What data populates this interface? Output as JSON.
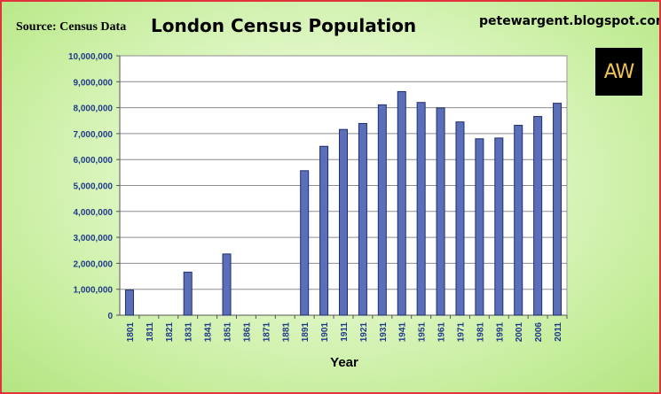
{
  "header": {
    "source": "Source: Census Data",
    "title": "London Census Population",
    "blog": "petewargent.blogspot.com",
    "logo_text": "AW"
  },
  "chart_data": {
    "type": "bar",
    "title": "London Census Population",
    "xlabel": "Year",
    "ylabel": "",
    "ylim": [
      0,
      10000000
    ],
    "yticks": [
      0,
      1000000,
      2000000,
      3000000,
      4000000,
      5000000,
      6000000,
      7000000,
      8000000,
      9000000,
      10000000
    ],
    "ytick_labels": [
      "0",
      "1,000,000",
      "2,000,000",
      "3,000,000",
      "4,000,000",
      "5,000,000",
      "6,000,000",
      "7,000,000",
      "8,000,000",
      "9,000,000",
      "10,000,000"
    ],
    "categories": [
      "1801",
      "1811",
      "1821",
      "1831",
      "1841",
      "1851",
      "1861",
      "1871",
      "1881",
      "1891",
      "1901",
      "1911",
      "1921",
      "1931",
      "1941",
      "1951",
      "1961",
      "1971",
      "1981",
      "1991",
      "2001",
      "2006",
      "2011"
    ],
    "values": [
      970000,
      null,
      null,
      1660000,
      null,
      2360000,
      null,
      null,
      null,
      5570000,
      6510000,
      7160000,
      7390000,
      8110000,
      8620000,
      8200000,
      7990000,
      7450000,
      6800000,
      6830000,
      7320000,
      7660000,
      8170000
    ],
    "grid": true,
    "bar_color": "#5b6fb8",
    "bar_edge": "#1f2d6e",
    "plot_bg": "#ffffff"
  }
}
